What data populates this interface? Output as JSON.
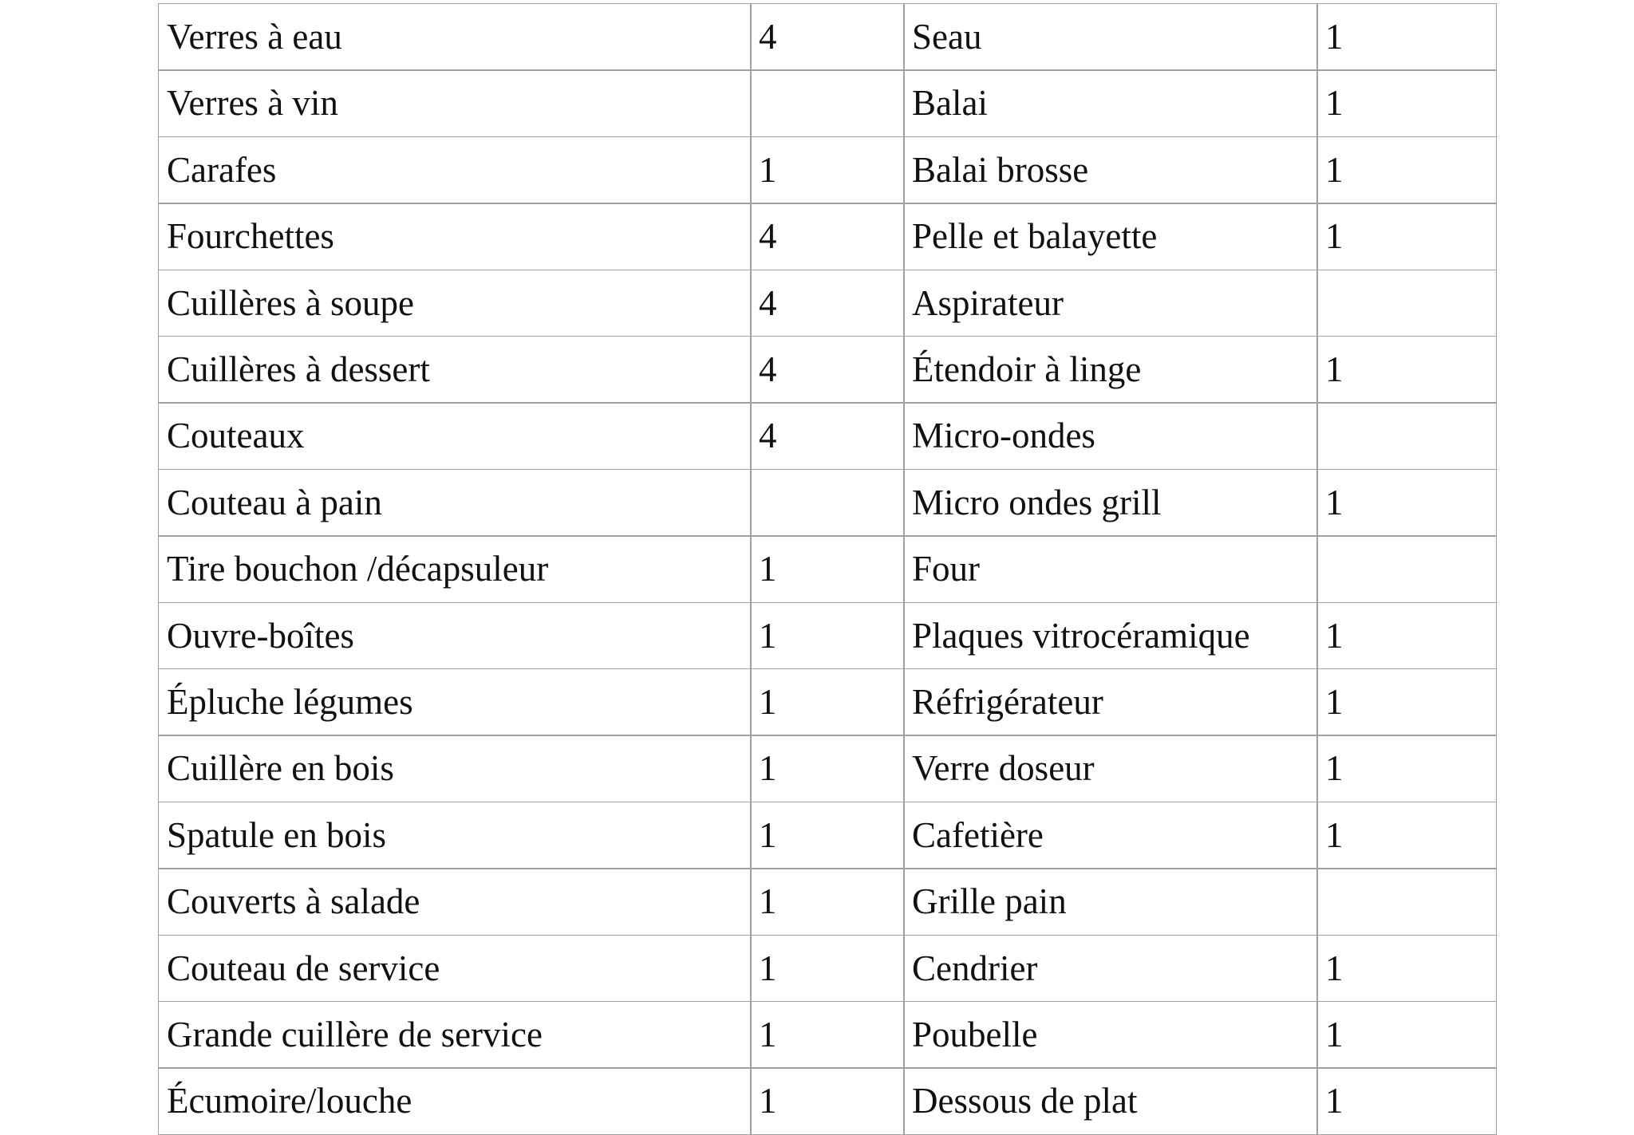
{
  "table": {
    "rows": [
      [
        "Verres à eau",
        "4",
        "Seau",
        "1"
      ],
      [
        "Verres à vin",
        null,
        "Balai",
        "1"
      ],
      [
        "Carafes",
        "1",
        "Balai brosse",
        "1"
      ],
      [
        "Fourchettes",
        "4",
        "Pelle et balayette",
        "1"
      ],
      [
        "Cuillères à soupe",
        "4",
        "Aspirateur",
        null
      ],
      [
        "Cuillères à dessert",
        "4",
        "Étendoir à linge",
        "1"
      ],
      [
        "Couteaux",
        "4",
        "Micro-ondes",
        null
      ],
      [
        "Couteau à pain",
        null,
        "Micro ondes grill",
        "1"
      ],
      [
        "Tire bouchon /décapsuleur",
        "1",
        "Four",
        null
      ],
      [
        "Ouvre-boîtes",
        "1",
        "Plaques vitrocéramique",
        "1"
      ],
      [
        "Épluche légumes",
        "1",
        "Réfrigérateur",
        "1"
      ],
      [
        "Cuillère en bois",
        "1",
        "Verre doseur",
        "1"
      ],
      [
        "Spatule en bois",
        "1",
        "Cafetière",
        "1"
      ],
      [
        "Couverts à salade",
        "1",
        "Grille pain",
        null
      ],
      [
        "Couteau de service",
        "1",
        "Cendrier",
        "1"
      ],
      [
        "Grande cuillère de service",
        "1",
        "Poubelle",
        "1"
      ],
      [
        "Écumoire/louche",
        "1",
        "Dessous de plat",
        "1"
      ]
    ]
  }
}
